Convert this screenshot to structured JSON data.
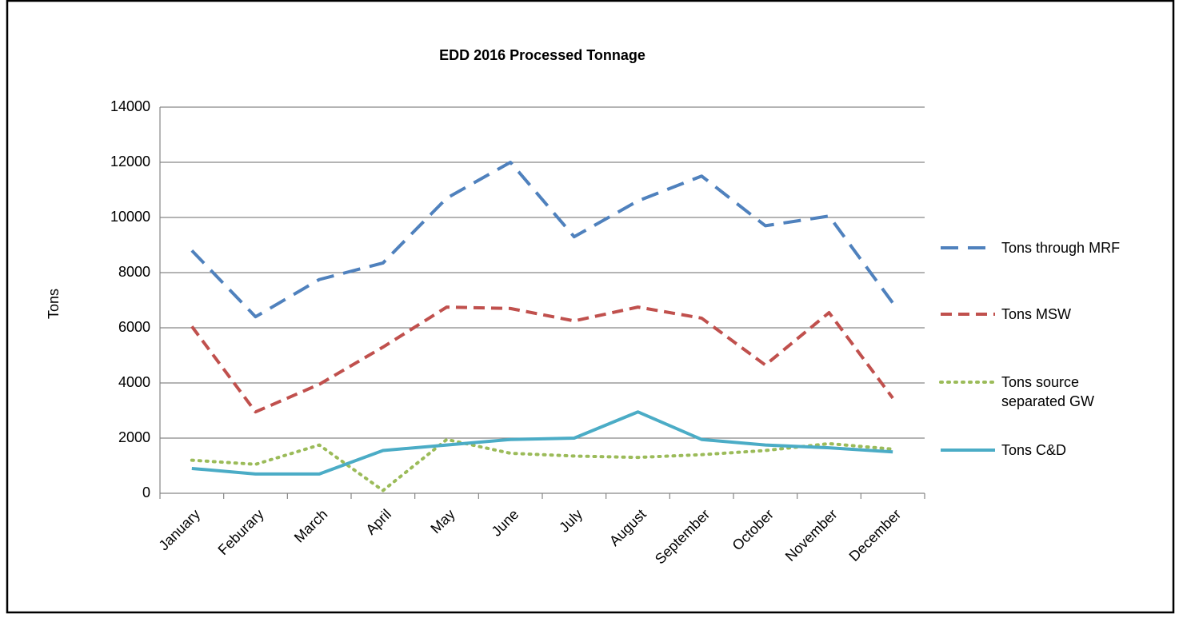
{
  "chart_data": {
    "type": "line",
    "title": "EDD 2016 Processed Tonnage",
    "y_label": "Tons",
    "categories": [
      "January",
      "Feburary",
      "March",
      "April",
      "May",
      "June",
      "July",
      "August",
      "September",
      "October",
      "November",
      "December"
    ],
    "series": [
      {
        "name": "Tons through MRF",
        "color": "#4f81bd",
        "dash": "dash",
        "values": [
          8800,
          6400,
          7750,
          8350,
          10700,
          12000,
          9300,
          10600,
          11500,
          9700,
          10050,
          6900
        ]
      },
      {
        "name": "Tons MSW",
        "color": "#c0504d",
        "dash": "short-dash",
        "values": [
          6050,
          2950,
          3950,
          5300,
          6750,
          6700,
          6250,
          6750,
          6350,
          4650,
          6550,
          3450
        ]
      },
      {
        "name": "Tons source separated GW",
        "color": "#9bbb59",
        "dash": "dot",
        "values": [
          1200,
          1050,
          1750,
          100,
          1950,
          1450,
          1350,
          1300,
          1400,
          1550,
          1800,
          1600
        ]
      },
      {
        "name": "Tons C&D",
        "color": "#4bacc6",
        "dash": "solid",
        "values": [
          900,
          700,
          700,
          1550,
          1750,
          1950,
          2000,
          2950,
          1950,
          1750,
          1650,
          1500
        ]
      }
    ],
    "ylim": [
      0,
      14000
    ],
    "yticks": [
      0,
      2000,
      4000,
      6000,
      8000,
      10000,
      12000,
      14000
    ],
    "grid": true,
    "legend": "right"
  }
}
